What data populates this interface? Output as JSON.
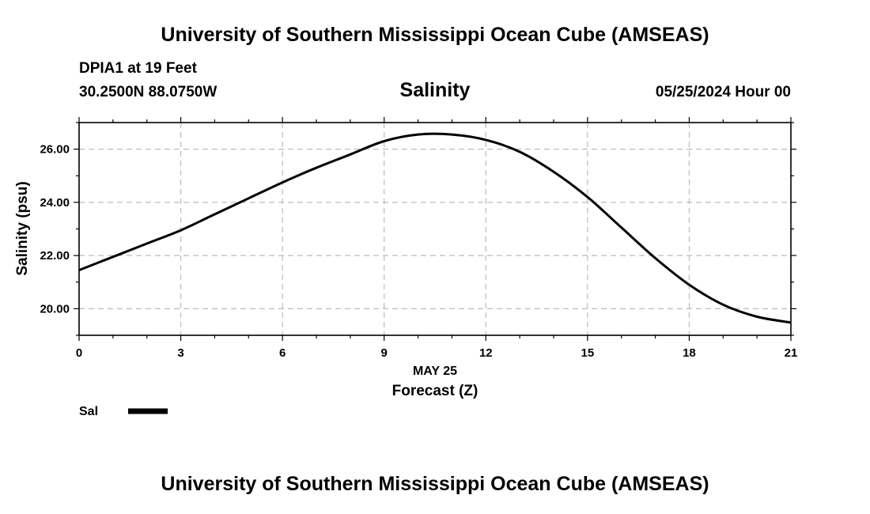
{
  "header": {
    "title": "University of Southern Mississippi Ocean Cube (AMSEAS)",
    "station": "DPIA1 at 19 Feet",
    "coordinates": "30.2500N  88.0750W",
    "variable": "Salinity",
    "datetime": "05/25/2024 Hour 00"
  },
  "footer": {
    "title": "University of Southern Mississippi Ocean Cube (AMSEAS)"
  },
  "chart_data": {
    "type": "line",
    "title": "Salinity",
    "xlabel": "Forecast (Z)",
    "x_date_label": "MAY 25",
    "ylabel": "Salinity (psu)",
    "xlim": [
      0,
      21
    ],
    "ylim": [
      19.0,
      27.0
    ],
    "x_ticks": [
      0,
      3,
      6,
      9,
      12,
      15,
      18,
      21
    ],
    "x_tick_labels": [
      "0",
      "3",
      "6",
      "9",
      "12",
      "15",
      "18",
      "21"
    ],
    "y_ticks": [
      20,
      22,
      24,
      26
    ],
    "y_tick_labels": [
      "20.00",
      "22.00",
      "24.00",
      "26.00"
    ],
    "grid": true,
    "series": [
      {
        "name": "Sal",
        "color": "#000000",
        "x": [
          0,
          1,
          2,
          3,
          4,
          5,
          6,
          7,
          8,
          9,
          10,
          11,
          12,
          13,
          14,
          15,
          16,
          17,
          18,
          19,
          20,
          21
        ],
        "y": [
          21.45,
          21.95,
          22.45,
          22.95,
          23.55,
          24.15,
          24.75,
          25.3,
          25.8,
          26.3,
          26.55,
          26.55,
          26.35,
          25.9,
          25.15,
          24.2,
          23.05,
          21.9,
          20.9,
          20.15,
          19.7,
          19.48
        ]
      }
    ],
    "legend": [
      {
        "label": "Sal",
        "color": "#000000"
      }
    ]
  }
}
